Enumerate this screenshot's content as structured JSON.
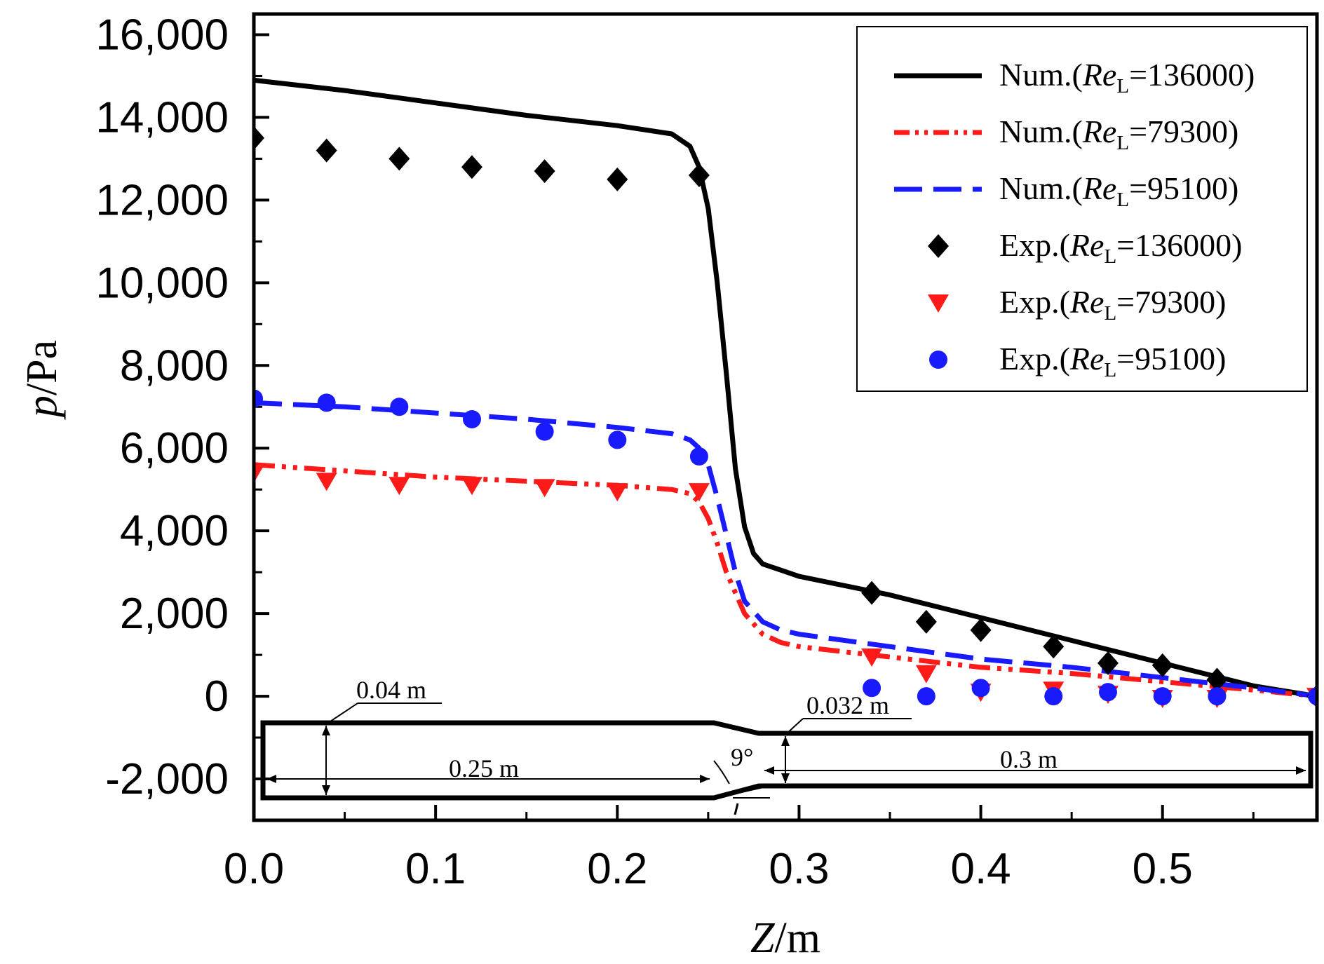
{
  "chart_data": {
    "type": "line",
    "xlabel": {
      "var": "Z",
      "unit": "/m"
    },
    "ylabel": {
      "var": "p",
      "unit": "/Pa"
    },
    "xlim": [
      0,
      0.585
    ],
    "ylim": [
      -3000,
      16500
    ],
    "xticks": [
      0.0,
      0.1,
      0.2,
      0.3,
      0.4,
      0.5
    ],
    "xtick_labels": [
      "0.0",
      "0.1",
      "0.2",
      "0.3",
      "0.4",
      "0.5"
    ],
    "yticks": [
      -2000,
      0,
      2000,
      4000,
      6000,
      8000,
      10000,
      12000,
      14000,
      16000
    ],
    "ytick_labels": [
      "-2,000",
      "0",
      "2,000",
      "4,000",
      "6,000",
      "8,000",
      "10,000",
      "12,000",
      "14,000",
      "16,000"
    ],
    "series": [
      {
        "name": "Num.(ReL=136000)",
        "legend_prefix": "Num.(",
        "legend_var": "Re",
        "legend_sub": "L",
        "legend_value": "=136000)",
        "kind": "line",
        "style": "solid",
        "color": "#000000",
        "x": [
          0.0,
          0.05,
          0.1,
          0.15,
          0.2,
          0.23,
          0.24,
          0.245,
          0.25,
          0.255,
          0.26,
          0.265,
          0.27,
          0.275,
          0.28,
          0.29,
          0.3,
          0.35,
          0.4,
          0.45,
          0.5,
          0.55,
          0.585
        ],
        "y": [
          14900,
          14650,
          14350,
          14050,
          13800,
          13600,
          13300,
          12800,
          11800,
          10000,
          7800,
          5500,
          4100,
          3450,
          3200,
          3050,
          2900,
          2450,
          1900,
          1350,
          800,
          250,
          0
        ]
      },
      {
        "name": "Num.(ReL=79300)",
        "legend_prefix": "Num.(",
        "legend_var": "Re",
        "legend_sub": "L",
        "legend_value": "=79300)",
        "kind": "line",
        "style": "dashdotdot",
        "color": "#ff1a1a",
        "x": [
          0.0,
          0.05,
          0.1,
          0.15,
          0.2,
          0.23,
          0.24,
          0.245,
          0.25,
          0.255,
          0.26,
          0.265,
          0.27,
          0.28,
          0.29,
          0.3,
          0.35,
          0.4,
          0.45,
          0.5,
          0.55,
          0.585
        ],
        "y": [
          5600,
          5450,
          5300,
          5200,
          5100,
          5000,
          4900,
          4700,
          4300,
          3700,
          3000,
          2500,
          2000,
          1500,
          1300,
          1200,
          950,
          700,
          550,
          350,
          150,
          0
        ]
      },
      {
        "name": "Num.(ReL=95100)",
        "legend_prefix": "Num.(",
        "legend_var": "Re",
        "legend_sub": "L",
        "legend_value": "=95100)",
        "kind": "line",
        "style": "dash",
        "color": "#1a1aff",
        "x": [
          0.0,
          0.05,
          0.1,
          0.15,
          0.2,
          0.23,
          0.24,
          0.245,
          0.25,
          0.255,
          0.26,
          0.265,
          0.27,
          0.28,
          0.29,
          0.3,
          0.35,
          0.4,
          0.45,
          0.5,
          0.55,
          0.585
        ],
        "y": [
          7100,
          7000,
          6850,
          6700,
          6500,
          6350,
          6200,
          6000,
          5600,
          4800,
          3900,
          3000,
          2300,
          1800,
          1600,
          1500,
          1200,
          900,
          700,
          450,
          200,
          0
        ]
      },
      {
        "name": "Exp.(ReL=136000)",
        "legend_prefix": "Exp.(",
        "legend_var": "Re",
        "legend_sub": "L",
        "legend_value": "=136000)",
        "kind": "scatter",
        "marker": "diamond",
        "color": "#000000",
        "x": [
          0.0,
          0.04,
          0.08,
          0.12,
          0.16,
          0.2,
          0.245,
          0.34,
          0.37,
          0.4,
          0.44,
          0.47,
          0.5,
          0.53,
          0.585
        ],
        "y": [
          13500,
          13200,
          13000,
          12800,
          12700,
          12500,
          12600,
          2500,
          1800,
          1600,
          1200,
          800,
          750,
          400,
          0
        ]
      },
      {
        "name": "Exp.(ReL=79300)",
        "legend_prefix": "Exp.(",
        "legend_var": "Re",
        "legend_sub": "L",
        "legend_value": "=79300)",
        "kind": "scatter",
        "marker": "triangle-down",
        "color": "#ff1a1a",
        "x": [
          0.0,
          0.04,
          0.08,
          0.12,
          0.16,
          0.2,
          0.245,
          0.34,
          0.37,
          0.4,
          0.44,
          0.47,
          0.5,
          0.53,
          0.585
        ],
        "y": [
          5400,
          5200,
          5100,
          5100,
          5050,
          4950,
          4950,
          950,
          550,
          100,
          150,
          50,
          -50,
          -50,
          0
        ]
      },
      {
        "name": "Exp.(ReL=95100)",
        "legend_prefix": "Exp.(",
        "legend_var": "Re",
        "legend_sub": "L",
        "legend_value": "=95100)",
        "kind": "scatter",
        "marker": "circle",
        "color": "#1a1aff",
        "x": [
          0.0,
          0.04,
          0.08,
          0.12,
          0.16,
          0.2,
          0.245,
          0.34,
          0.37,
          0.4,
          0.44,
          0.47,
          0.5,
          0.53,
          0.585
        ],
        "y": [
          7200,
          7100,
          7000,
          6700,
          6400,
          6200,
          5800,
          200,
          0,
          200,
          0,
          100,
          0,
          0,
          0
        ]
      }
    ],
    "legend_position": "top-right",
    "inset_annotations": [
      "0.04 m",
      "0.25 m",
      "9°",
      "0.032 m",
      "0.3 m"
    ]
  }
}
